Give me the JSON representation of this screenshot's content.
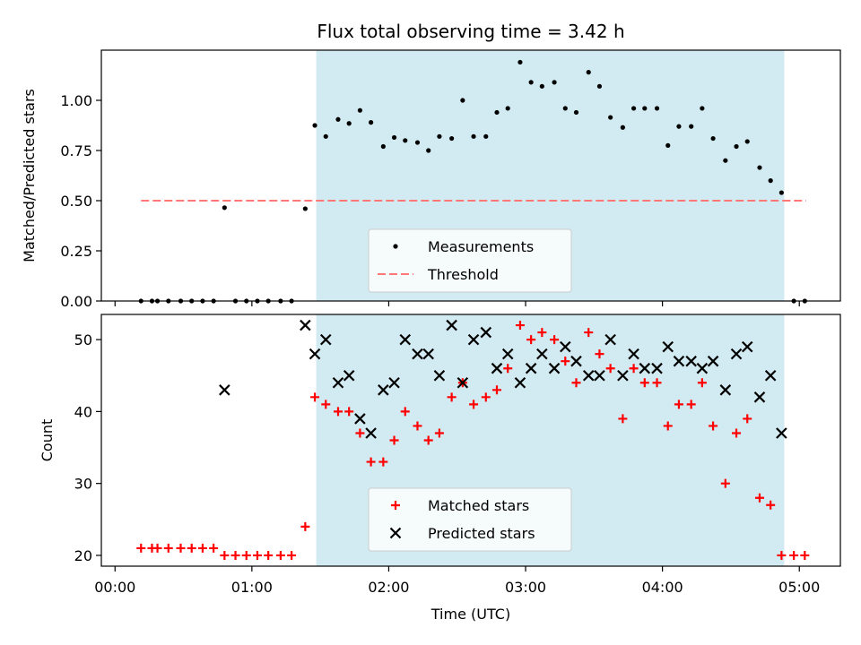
{
  "chart_data": {
    "type": "scatter",
    "title": "Flux total observing time = 3.42 h",
    "xlabel": "Time (UTC)",
    "x_unit": "hours UTC",
    "xlim": [
      -0.1,
      5.3
    ],
    "x_ticks": [
      {
        "value": 0,
        "label": "00:00"
      },
      {
        "value": 1,
        "label": "01:00"
      },
      {
        "value": 2,
        "label": "02:00"
      },
      {
        "value": 3,
        "label": "03:00"
      },
      {
        "value": 4,
        "label": "04:00"
      },
      {
        "value": 5,
        "label": "05:00"
      }
    ],
    "observing_window": {
      "start": 1.47,
      "end": 4.89,
      "color": "#add8e6"
    },
    "panels": [
      {
        "ylabel": "Matched/Predicted stars",
        "ylim": [
          0,
          1.25
        ],
        "y_ticks": [
          "0.00",
          "0.25",
          "0.50",
          "0.75",
          "1.00"
        ],
        "legend_position": "lower-center",
        "threshold": {
          "name": "Threshold",
          "value": 0.5,
          "x_range": [
            0.19,
            5.05
          ],
          "color": "#ff7777"
        },
        "series": [
          {
            "name": "Measurements",
            "color": "#000000",
            "marker": "dot",
            "points": [
              [
                0.19,
                0.0
              ],
              [
                0.27,
                0.0
              ],
              [
                0.31,
                0.0
              ],
              [
                0.39,
                0.0
              ],
              [
                0.48,
                0.0
              ],
              [
                0.56,
                0.0
              ],
              [
                0.64,
                0.0
              ],
              [
                0.72,
                0.0
              ],
              [
                0.8,
                0.465
              ],
              [
                0.88,
                0.0
              ],
              [
                0.96,
                0.0
              ],
              [
                1.04,
                0.0
              ],
              [
                1.12,
                0.0
              ],
              [
                1.21,
                0.0
              ],
              [
                1.29,
                0.0
              ],
              [
                1.39,
                0.46
              ],
              [
                1.46,
                0.875
              ],
              [
                1.54,
                0.82
              ],
              [
                1.63,
                0.905
              ],
              [
                1.71,
                0.885
              ],
              [
                1.79,
                0.95
              ],
              [
                1.87,
                0.89
              ],
              [
                1.96,
                0.77
              ],
              [
                2.04,
                0.815
              ],
              [
                2.12,
                0.8
              ],
              [
                2.21,
                0.79
              ],
              [
                2.29,
                0.75
              ],
              [
                2.37,
                0.82
              ],
              [
                2.46,
                0.81
              ],
              [
                2.54,
                1.0
              ],
              [
                2.62,
                0.82
              ],
              [
                2.71,
                0.82
              ],
              [
                2.79,
                0.94
              ],
              [
                2.87,
                0.96
              ],
              [
                2.96,
                1.19
              ],
              [
                3.04,
                1.09
              ],
              [
                3.12,
                1.07
              ],
              [
                3.21,
                1.09
              ],
              [
                3.29,
                0.96
              ],
              [
                3.37,
                0.94
              ],
              [
                3.46,
                1.14
              ],
              [
                3.54,
                1.07
              ],
              [
                3.62,
                0.915
              ],
              [
                3.71,
                0.865
              ],
              [
                3.79,
                0.96
              ],
              [
                3.87,
                0.96
              ],
              [
                3.96,
                0.96
              ],
              [
                4.04,
                0.775
              ],
              [
                4.12,
                0.87
              ],
              [
                4.21,
                0.87
              ],
              [
                4.29,
                0.96
              ],
              [
                4.37,
                0.81
              ],
              [
                4.46,
                0.7
              ],
              [
                4.54,
                0.77
              ],
              [
                4.62,
                0.795
              ],
              [
                4.71,
                0.665
              ],
              [
                4.79,
                0.6
              ],
              [
                4.87,
                0.54
              ],
              [
                4.96,
                0.0
              ],
              [
                5.04,
                0.0
              ]
            ]
          }
        ]
      },
      {
        "ylabel": "Count",
        "ylim": [
          18.5,
          53.5
        ],
        "y_ticks": [
          "20",
          "30",
          "40",
          "50"
        ],
        "legend_position": "lower-center",
        "series": [
          {
            "name": "Matched stars",
            "color": "#ff0000",
            "marker": "plus",
            "points": [
              [
                0.19,
                21
              ],
              [
                0.27,
                21
              ],
              [
                0.31,
                21
              ],
              [
                0.39,
                21
              ],
              [
                0.48,
                21
              ],
              [
                0.56,
                21
              ],
              [
                0.64,
                21
              ],
              [
                0.72,
                21
              ],
              [
                0.8,
                20
              ],
              [
                0.88,
                20
              ],
              [
                0.96,
                20
              ],
              [
                1.04,
                20
              ],
              [
                1.12,
                20
              ],
              [
                1.21,
                20
              ],
              [
                1.29,
                20
              ],
              [
                1.39,
                24
              ],
              [
                1.46,
                42
              ],
              [
                1.54,
                41
              ],
              [
                1.63,
                40
              ],
              [
                1.71,
                40
              ],
              [
                1.79,
                37
              ],
              [
                1.87,
                33
              ],
              [
                1.96,
                33
              ],
              [
                2.04,
                36
              ],
              [
                2.12,
                40
              ],
              [
                2.21,
                38
              ],
              [
                2.29,
                36
              ],
              [
                2.37,
                37
              ],
              [
                2.46,
                42
              ],
              [
                2.54,
                44
              ],
              [
                2.62,
                41
              ],
              [
                2.71,
                42
              ],
              [
                2.79,
                43
              ],
              [
                2.87,
                46
              ],
              [
                2.96,
                52
              ],
              [
                3.04,
                50
              ],
              [
                3.12,
                51
              ],
              [
                3.21,
                50
              ],
              [
                3.29,
                47
              ],
              [
                3.37,
                44
              ],
              [
                3.46,
                51
              ],
              [
                3.54,
                48
              ],
              [
                3.62,
                46
              ],
              [
                3.71,
                39
              ],
              [
                3.79,
                46
              ],
              [
                3.87,
                44
              ],
              [
                3.96,
                44
              ],
              [
                4.04,
                38
              ],
              [
                4.12,
                41
              ],
              [
                4.21,
                41
              ],
              [
                4.29,
                44
              ],
              [
                4.37,
                38
              ],
              [
                4.46,
                30
              ],
              [
                4.54,
                37
              ],
              [
                4.62,
                39
              ],
              [
                4.71,
                28
              ],
              [
                4.79,
                27
              ],
              [
                4.87,
                20
              ],
              [
                4.96,
                20
              ],
              [
                5.04,
                20
              ]
            ]
          },
          {
            "name": "Predicted stars",
            "color": "#000000",
            "marker": "x",
            "points": [
              [
                0.8,
                43
              ],
              [
                1.39,
                52
              ],
              [
                1.46,
                48
              ],
              [
                1.54,
                50
              ],
              [
                1.63,
                44
              ],
              [
                1.71,
                45
              ],
              [
                1.79,
                39
              ],
              [
                1.87,
                37
              ],
              [
                1.96,
                43
              ],
              [
                2.04,
                44
              ],
              [
                2.12,
                50
              ],
              [
                2.21,
                48
              ],
              [
                2.29,
                48
              ],
              [
                2.37,
                45
              ],
              [
                2.46,
                52
              ],
              [
                2.54,
                44
              ],
              [
                2.62,
                50
              ],
              [
                2.71,
                51
              ],
              [
                2.79,
                46
              ],
              [
                2.87,
                48
              ],
              [
                2.96,
                44
              ],
              [
                3.04,
                46
              ],
              [
                3.12,
                48
              ],
              [
                3.21,
                46
              ],
              [
                3.29,
                49
              ],
              [
                3.37,
                47
              ],
              [
                3.46,
                45
              ],
              [
                3.54,
                45
              ],
              [
                3.62,
                50
              ],
              [
                3.71,
                45
              ],
              [
                3.79,
                48
              ],
              [
                3.87,
                46
              ],
              [
                3.96,
                46
              ],
              [
                4.04,
                49
              ],
              [
                4.12,
                47
              ],
              [
                4.21,
                47
              ],
              [
                4.29,
                46
              ],
              [
                4.37,
                47
              ],
              [
                4.46,
                43
              ],
              [
                4.54,
                48
              ],
              [
                4.62,
                49
              ],
              [
                4.71,
                42
              ],
              [
                4.79,
                45
              ],
              [
                4.87,
                37
              ]
            ]
          }
        ]
      }
    ]
  }
}
